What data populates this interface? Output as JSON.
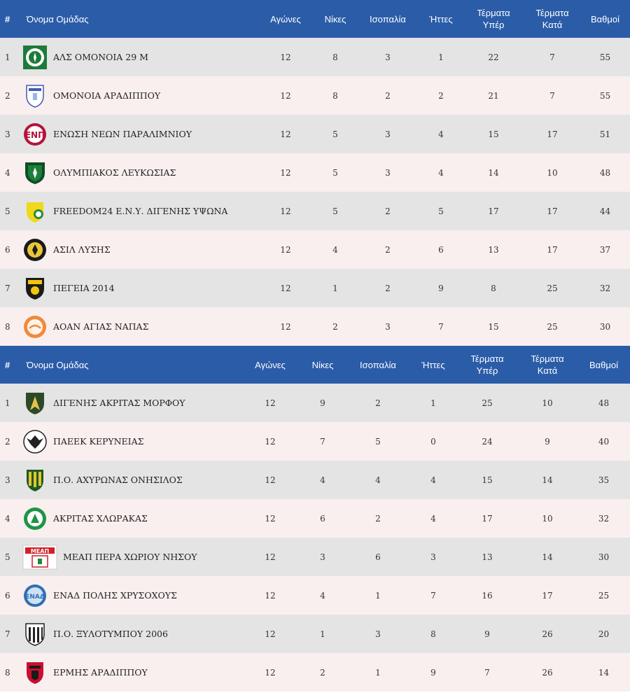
{
  "columns": {
    "rank": "#",
    "team": "Όνομα Ομάδας",
    "played": "Αγώνες",
    "wins": "Νίκες",
    "draws": "Ισοπαλία",
    "losses": "Ήττες",
    "goals_for_l1": "Τέρματα",
    "goals_for_l2": "Υπέρ",
    "goals_against_l1": "Τέρματα",
    "goals_against_l2": "Κατά",
    "points": "Βαθμοί"
  },
  "group1": [
    {
      "rank": "1",
      "team": "ΑΛΣ ΟΜΟΝΟΙΑ 29 Μ",
      "logo": "omonoia-29m-crest-icon",
      "played": "12",
      "wins": "8",
      "draws": "3",
      "losses": "1",
      "gf": "22",
      "ga": "7",
      "pts": "55"
    },
    {
      "rank": "2",
      "team": "ΟΜΟΝΟΙΑ ΑΡΑΔΙΠΠΟΥ",
      "logo": "omonoia-aradippou-crest-icon",
      "played": "12",
      "wins": "8",
      "draws": "2",
      "losses": "2",
      "gf": "21",
      "ga": "7",
      "pts": "55"
    },
    {
      "rank": "3",
      "team": "ΕΝΩΣΗ ΝΕΩΝ ΠΑΡΑΛΙΜΝΙΟΥ",
      "logo": "enp-crest-icon",
      "played": "12",
      "wins": "5",
      "draws": "3",
      "losses": "4",
      "gf": "15",
      "ga": "17",
      "pts": "51"
    },
    {
      "rank": "4",
      "team": "ΟΛΥΜΠΙΑΚΟΣ ΛΕΥΚΩΣΙΑΣ",
      "logo": "olympiakos-nicosia-crest-icon",
      "played": "12",
      "wins": "5",
      "draws": "3",
      "losses": "4",
      "gf": "14",
      "ga": "10",
      "pts": "48"
    },
    {
      "rank": "5",
      "team": "FREEDOM24 Ε.Ν.Υ. ΔΙΓΕΝΗΣ ΥΨΩΝΑ",
      "logo": "digenis-ypsona-crest-icon",
      "played": "12",
      "wins": "5",
      "draws": "2",
      "losses": "5",
      "gf": "17",
      "ga": "17",
      "pts": "44"
    },
    {
      "rank": "6",
      "team": "ΑΣΙΛ ΛΥΣΗΣ",
      "logo": "asil-lysis-crest-icon",
      "played": "12",
      "wins": "4",
      "draws": "2",
      "losses": "6",
      "gf": "13",
      "ga": "17",
      "pts": "37"
    },
    {
      "rank": "7",
      "team": "ΠΕΓΕΙΑ 2014",
      "logo": "pegeia-crest-icon",
      "played": "12",
      "wins": "1",
      "draws": "2",
      "losses": "9",
      "gf": "8",
      "ga": "25",
      "pts": "32"
    },
    {
      "rank": "8",
      "team": "ΑΟΑΝ ΑΓΙΑΣ ΝΑΠΑΣ",
      "logo": "aoan-agia-napa-crest-icon",
      "played": "12",
      "wins": "2",
      "draws": "3",
      "losses": "7",
      "gf": "15",
      "ga": "25",
      "pts": "30"
    }
  ],
  "group2": [
    {
      "rank": "1",
      "team": "ΔΙΓΕΝΗΣ ΑΚΡΙΤΑΣ ΜΟΡΦΟΥ",
      "logo": "digenis-morfou-crest-icon",
      "played": "12",
      "wins": "9",
      "draws": "2",
      "losses": "1",
      "gf": "25",
      "ga": "10",
      "pts": "48"
    },
    {
      "rank": "2",
      "team": "ΠΑΕΕΚ ΚΕΡΥΝΕΙΑΣ",
      "logo": "paeek-crest-icon",
      "played": "12",
      "wins": "7",
      "draws": "5",
      "losses": "0",
      "gf": "24",
      "ga": "9",
      "pts": "40"
    },
    {
      "rank": "3",
      "team": "Π.Ο. ΑΧΥΡΩΝΑΣ ΟΝΗΣΙΛΟΣ",
      "logo": "achyronas-crest-icon",
      "played": "12",
      "wins": "4",
      "draws": "4",
      "losses": "4",
      "gf": "15",
      "ga": "14",
      "pts": "35"
    },
    {
      "rank": "4",
      "team": "ΑΚΡΙΤΑΣ ΧΛΩΡΑΚΑΣ",
      "logo": "akritas-chlorakas-crest-icon",
      "played": "12",
      "wins": "6",
      "draws": "2",
      "losses": "4",
      "gf": "17",
      "ga": "10",
      "pts": "32"
    },
    {
      "rank": "5",
      "team": "ΜΕΑΠ ΠΕΡΑ ΧΩΡΙΟΥ ΝΗΣΟΥ",
      "logo": "meap-crest-icon",
      "played": "12",
      "wins": "3",
      "draws": "6",
      "losses": "3",
      "gf": "13",
      "ga": "14",
      "pts": "30"
    },
    {
      "rank": "6",
      "team": "ΕΝΑΔ ΠΟΛΗΣ ΧΡΥΣΟΧΟΥΣ",
      "logo": "enad-crest-icon",
      "played": "12",
      "wins": "4",
      "draws": "1",
      "losses": "7",
      "gf": "16",
      "ga": "17",
      "pts": "25"
    },
    {
      "rank": "7",
      "team": "Π.Ο. ΞΥΛΟΤΥΜΠΟΥ 2006",
      "logo": "xylotymbou-crest-icon",
      "played": "12",
      "wins": "1",
      "draws": "3",
      "losses": "8",
      "gf": "9",
      "ga": "26",
      "pts": "20"
    },
    {
      "rank": "8",
      "team": "ΕΡΜΗΣ ΑΡΑΔΙΠΠΟΥ",
      "logo": "ermis-aradippou-crest-icon",
      "played": "12",
      "wins": "2",
      "draws": "1",
      "losses": "9",
      "gf": "7",
      "ga": "26",
      "pts": "14"
    }
  ],
  "colors": {
    "header_bg": "#2a5ca8",
    "row_odd": "#e4e4e4",
    "row_even": "#f9efef"
  }
}
